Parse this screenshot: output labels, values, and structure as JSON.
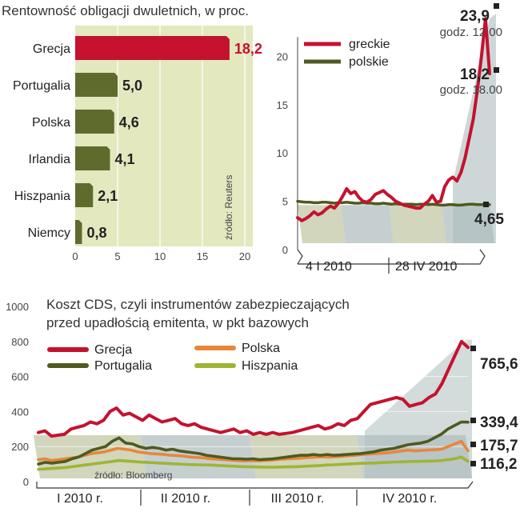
{
  "chart_data": [
    {
      "type": "bar",
      "orientation": "horizontal",
      "title": "Rentowność obligacji dwuletnich, w proc.",
      "categories": [
        "Grecja",
        "Portugalia",
        "Polska",
        "Irlandia",
        "Hiszpania",
        "Niemcy"
      ],
      "values": [
        18.2,
        5.0,
        4.6,
        4.1,
        2.1,
        0.8
      ],
      "value_labels": [
        "18,2",
        "5,0",
        "4,6",
        "4,1",
        "2,1",
        "0,8"
      ],
      "xlim": [
        0,
        20
      ],
      "xticks": [
        0,
        5,
        10,
        15,
        20
      ],
      "source": "źródło: Reuters",
      "colors": {
        "highlight": "#c4122f",
        "bars": "#5e6b2c",
        "background": "#e3e8bf"
      }
    },
    {
      "type": "line",
      "ylim": [
        0,
        25
      ],
      "yticks": [
        0,
        5,
        10,
        15,
        20
      ],
      "xlabels": [
        "4 I 2010",
        "28 IV 2010"
      ],
      "legend": [
        "greckie",
        "polskie"
      ],
      "annotations": [
        {
          "value": "23,9",
          "note": "godz. 12.00"
        },
        {
          "value": "18,2",
          "note": "godz. 18.00"
        },
        {
          "value": "4,65",
          "note": ""
        }
      ],
      "series": [
        {
          "name": "greckie",
          "color": "#c4122f",
          "values": [
            3.3,
            3.0,
            3.2,
            3.5,
            3.9,
            3.6,
            3.8,
            4.2,
            4.5,
            4.3,
            4.8,
            5.5,
            6.3,
            5.8,
            6.0,
            5.4,
            5.0,
            4.9,
            5.2,
            5.7,
            5.9,
            6.1,
            5.7,
            5.4,
            5.0,
            4.8,
            4.6,
            4.5,
            4.4,
            4.3,
            4.3,
            4.7,
            5.0,
            5.6,
            4.9,
            5.0,
            6.5,
            7.2,
            7.5,
            7.1,
            8.0,
            9.5,
            11.5,
            13.5,
            16.5,
            20.0,
            23.9,
            18.2
          ]
        },
        {
          "name": "polskie",
          "color": "#4e5a1f",
          "values": [
            5.0,
            4.95,
            4.9,
            4.9,
            4.85,
            4.85,
            4.9,
            4.9,
            4.85,
            4.8,
            4.85,
            4.85,
            4.9,
            4.85,
            4.8,
            4.8,
            4.85,
            4.8,
            4.8,
            4.75,
            4.75,
            4.8,
            4.75,
            4.7,
            4.75,
            4.7,
            4.7,
            4.7,
            4.7,
            4.65,
            4.7,
            4.7,
            4.65,
            4.7,
            4.65,
            4.6,
            4.6,
            4.65,
            4.65,
            4.6,
            4.6,
            4.65,
            4.7,
            4.7,
            4.65,
            4.65,
            4.65,
            4.65
          ]
        }
      ]
    },
    {
      "type": "line",
      "title": "Koszt CDS, czyli instrumentów zabezpieczających",
      "subtitle": "przed upadłością emitenta, w pkt bazowych",
      "ylim": [
        0,
        1000
      ],
      "yticks": [
        0,
        200,
        400,
        600,
        800,
        1000
      ],
      "xlabels": [
        "I 2010 r.",
        "II 2010 r.",
        "III 2010 r.",
        "IV 2010 r."
      ],
      "source": "źródło: Bloomberg",
      "end_labels": [
        "765,6",
        "339,4",
        "175,7",
        "116,2"
      ],
      "series": [
        {
          "name": "Grecja",
          "color": "#c4122f",
          "values": [
            280,
            290,
            260,
            265,
            270,
            300,
            310,
            320,
            340,
            330,
            350,
            400,
            420,
            380,
            390,
            370,
            350,
            380,
            360,
            340,
            350,
            360,
            330,
            320,
            330,
            310,
            300,
            290,
            280,
            290,
            300,
            280,
            290,
            270,
            280,
            270,
            280,
            270,
            275,
            280,
            290,
            300,
            310,
            320,
            300,
            310,
            330,
            320,
            350,
            360,
            400,
            440,
            450,
            460,
            470,
            480,
            470,
            430,
            440,
            450,
            480,
            500,
            560,
            640,
            720,
            800,
            765.6
          ]
        },
        {
          "name": "Portugalia",
          "color": "#4e5a1f",
          "values": [
            100,
            110,
            105,
            110,
            115,
            130,
            140,
            160,
            180,
            190,
            200,
            230,
            250,
            220,
            215,
            200,
            190,
            195,
            190,
            180,
            185,
            175,
            170,
            165,
            160,
            150,
            145,
            140,
            135,
            130,
            130,
            128,
            130,
            125,
            128,
            130,
            135,
            140,
            145,
            150,
            150,
            155,
            150,
            155,
            150,
            152,
            155,
            158,
            160,
            165,
            170,
            180,
            185,
            190,
            200,
            210,
            215,
            220,
            230,
            250,
            270,
            300,
            320,
            340,
            339.4
          ]
        },
        {
          "name": "Polska",
          "color": "#e8873a",
          "values": [
            125,
            130,
            120,
            125,
            130,
            135,
            140,
            150,
            160,
            165,
            170,
            180,
            190,
            185,
            180,
            170,
            165,
            160,
            158,
            155,
            150,
            148,
            145,
            140,
            138,
            135,
            130,
            128,
            125,
            123,
            120,
            118,
            120,
            118,
            120,
            122,
            125,
            128,
            130,
            132,
            135,
            138,
            140,
            142,
            140,
            142,
            145,
            148,
            150,
            155,
            158,
            160,
            162,
            165,
            170,
            175,
            180,
            175,
            178,
            180,
            182,
            185,
            200,
            215,
            230,
            175.7
          ]
        },
        {
          "name": "Hiszpania",
          "color": "#9fb532",
          "values": [
            70,
            72,
            75,
            78,
            80,
            85,
            90,
            95,
            100,
            105,
            110,
            115,
            120,
            118,
            115,
            112,
            110,
            108,
            106,
            104,
            102,
            100,
            98,
            97,
            96,
            95,
            94,
            92,
            90,
            88,
            86,
            85,
            84,
            83,
            82,
            82,
            83,
            84,
            85,
            86,
            88,
            90,
            92,
            95,
            96,
            98,
            100,
            102,
            104,
            105,
            106,
            108,
            110,
            112,
            113,
            114,
            115,
            116,
            117,
            118,
            120,
            125,
            130,
            140,
            116.2
          ]
        }
      ]
    }
  ]
}
